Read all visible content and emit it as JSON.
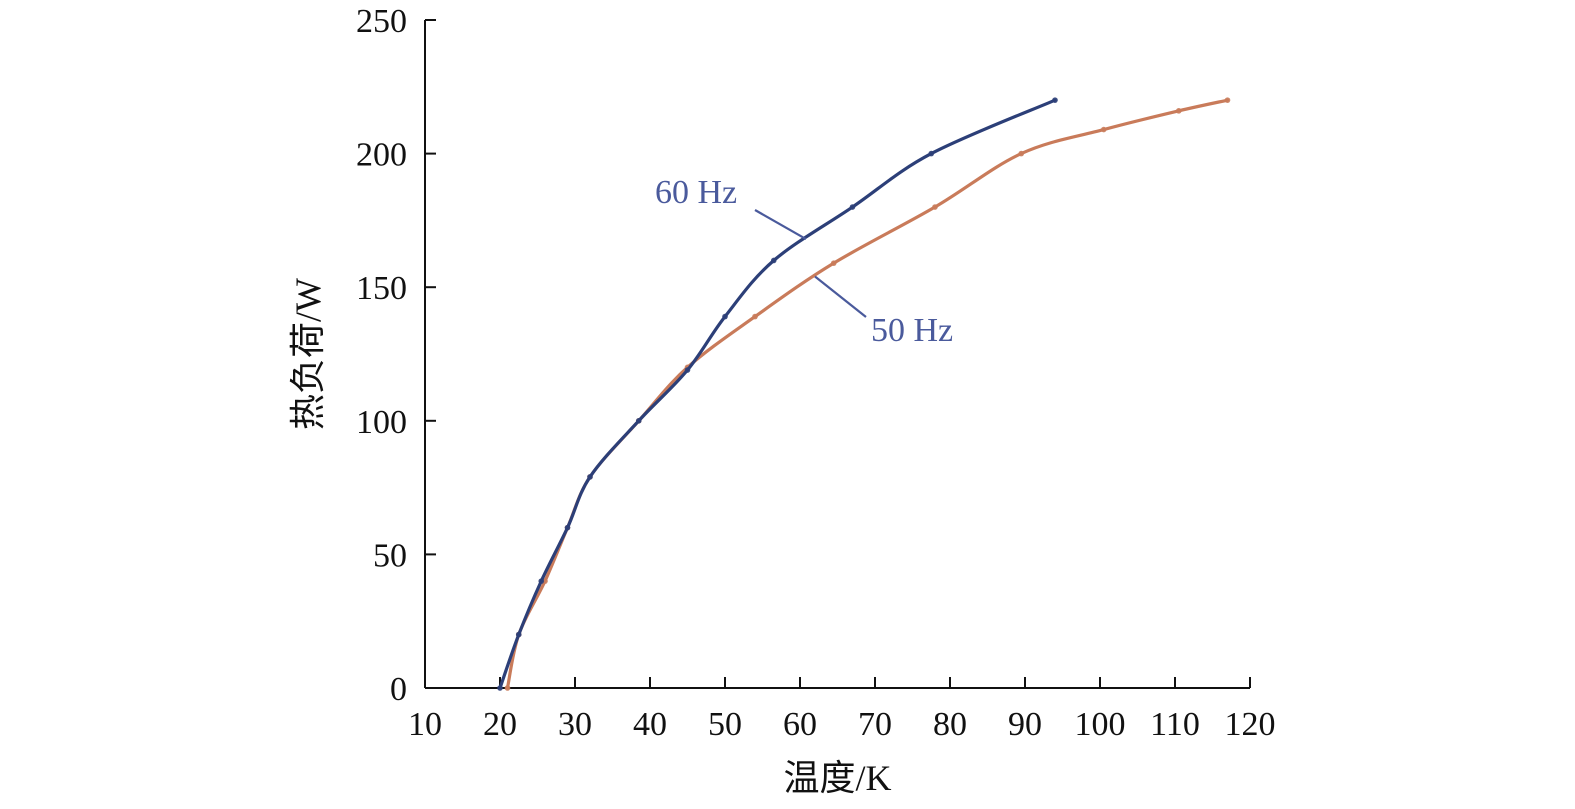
{
  "chart_data": {
    "type": "line",
    "title": "",
    "xlabel": "温度/K",
    "ylabel": "热负荷/W",
    "xlim": [
      10,
      120
    ],
    "ylim": [
      0,
      250
    ],
    "x_ticks": [
      10,
      20,
      30,
      40,
      50,
      60,
      70,
      80,
      90,
      100,
      110,
      120
    ],
    "y_ticks": [
      0,
      50,
      100,
      150,
      200,
      250
    ],
    "x_tick_labels": [
      "10",
      "20",
      "30",
      "40",
      "50",
      "60",
      "70",
      "80",
      "90",
      "100",
      "110",
      "120"
    ],
    "y_tick_labels": [
      "0",
      "50",
      "100",
      "150",
      "200",
      "250"
    ],
    "grid": false,
    "legend": "none",
    "series": [
      {
        "name": "60 Hz",
        "color": "#2c3f78",
        "label_color": "#4a5a9c",
        "points": [
          {
            "x": 20,
            "y": 0
          },
          {
            "x": 22.5,
            "y": 20
          },
          {
            "x": 25.5,
            "y": 40
          },
          {
            "x": 29,
            "y": 60
          },
          {
            "x": 32,
            "y": 79
          },
          {
            "x": 38.5,
            "y": 100
          },
          {
            "x": 45,
            "y": 119
          },
          {
            "x": 50,
            "y": 139
          },
          {
            "x": 56.5,
            "y": 160
          },
          {
            "x": 67,
            "y": 180
          },
          {
            "x": 77.5,
            "y": 200
          },
          {
            "x": 94,
            "y": 220
          }
        ]
      },
      {
        "name": "50 Hz",
        "color": "#c97b5a",
        "label_color": "#4a5a9c",
        "points": [
          {
            "x": 21,
            "y": 0
          },
          {
            "x": 22.5,
            "y": 20
          },
          {
            "x": 26,
            "y": 40
          },
          {
            "x": 29,
            "y": 60
          },
          {
            "x": 32,
            "y": 79
          },
          {
            "x": 38.5,
            "y": 100
          },
          {
            "x": 45,
            "y": 120
          },
          {
            "x": 54,
            "y": 139
          },
          {
            "x": 64.5,
            "y": 159
          },
          {
            "x": 78,
            "y": 180
          },
          {
            "x": 89.5,
            "y": 200
          },
          {
            "x": 100.5,
            "y": 209
          },
          {
            "x": 110.5,
            "y": 216
          },
          {
            "x": 117,
            "y": 220
          }
        ]
      }
    ],
    "annotations": [
      {
        "text": "60 Hz",
        "series": "60 Hz"
      },
      {
        "text": "50 Hz",
        "series": "50 Hz"
      }
    ]
  }
}
